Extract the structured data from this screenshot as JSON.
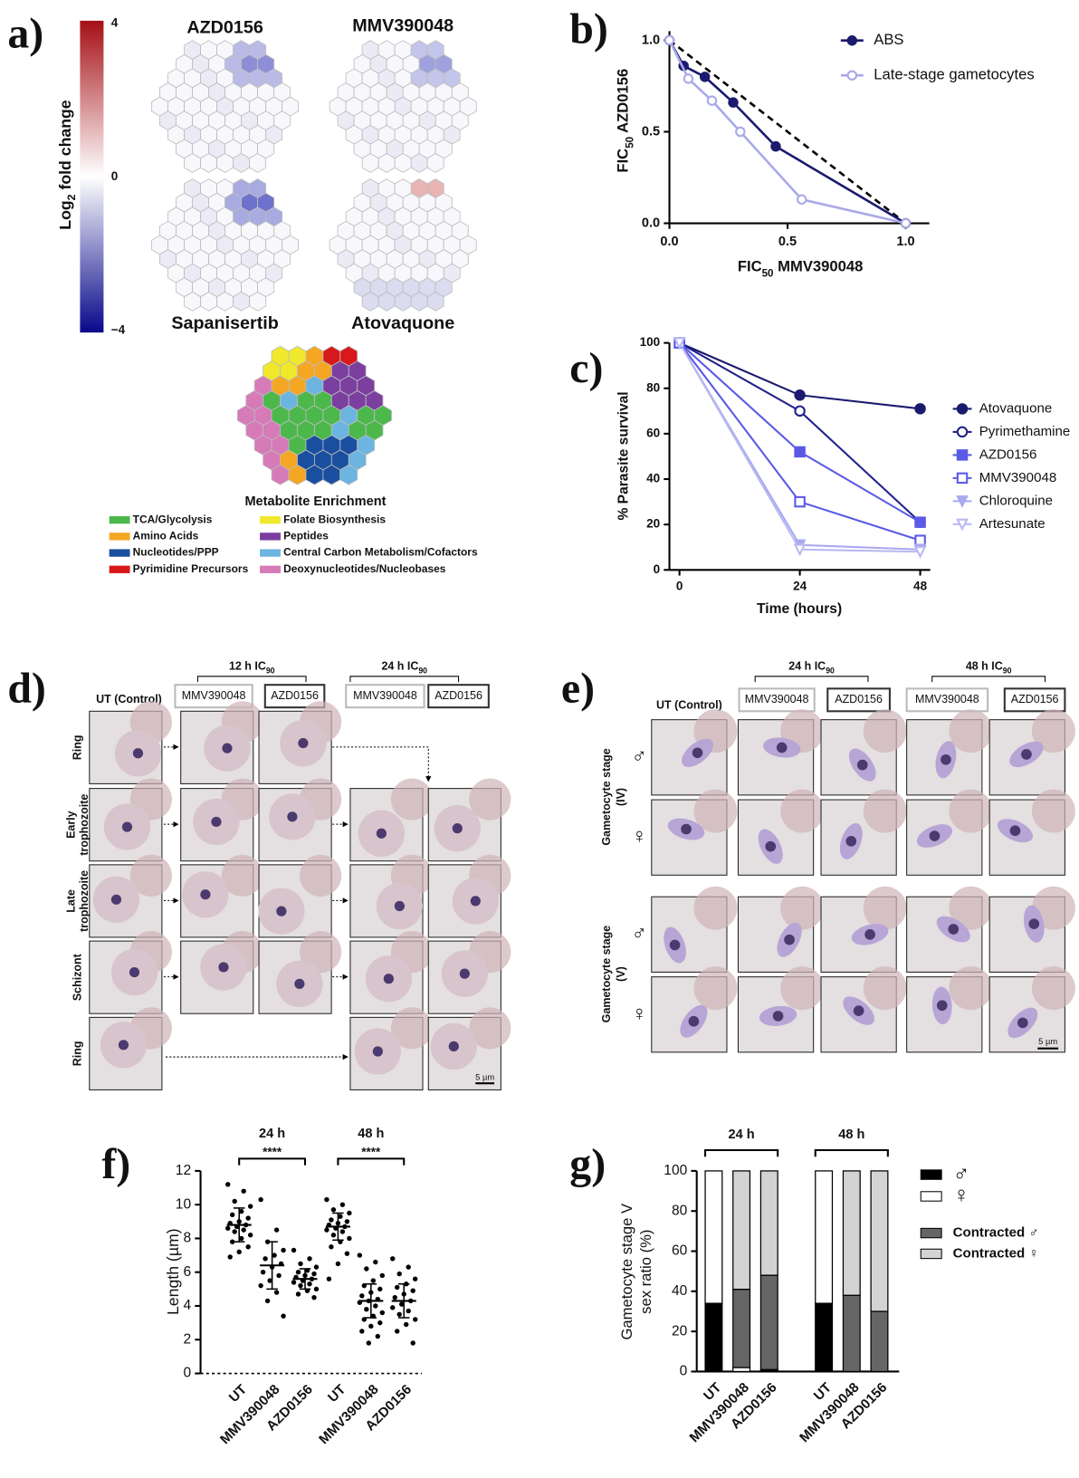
{
  "panel_labels": [
    "a)",
    "b)",
    "c)",
    "d)",
    "e)",
    "f)",
    "g)"
  ],
  "panel_a": {
    "colorbar_label": {
      "main": "Log",
      "sub": "2",
      "rest": " fold change"
    },
    "colorbar_ticks": [
      4,
      0,
      {
        "value": -4,
        "label": "−4"
      }
    ],
    "maps": [
      "AZD0156",
      "MMV390048",
      "Sapanisertib",
      "Atovaquone"
    ],
    "enrichment_title": "Metabolite Enrichment",
    "legend": [
      {
        "name": "TCA/Glycolysis",
        "color": "#4cb84c"
      },
      {
        "name": "Amino Acids",
        "color": "#f5a623"
      },
      {
        "name": "Nucleotides/PPP",
        "color": "#1a4fa0"
      },
      {
        "name": "Pyrimidine Precursors",
        "color": "#d7191c"
      },
      {
        "name": "Folate Biosynthesis",
        "color": "#f0e82a"
      },
      {
        "name": "Peptides",
        "color": "#7b3fa0"
      },
      {
        "name": "Central Carbon Metabolism/Cofactors",
        "color": "#6bb5e0"
      },
      {
        "name": "Deoxynucleotides/Nucleobases",
        "color": "#d67ab8"
      }
    ]
  },
  "panel_d": {
    "groups": [
      {
        "main": "12 h IC",
        "sub": "90"
      },
      {
        "main": "24 h IC",
        "sub": "90"
      }
    ],
    "columns": [
      "UT (Control)",
      "MMV390048",
      "AZD0156",
      "MMV390048",
      "AZD0156"
    ],
    "rows": [
      [
        "Ring"
      ],
      [
        "Early",
        "trophozoite"
      ],
      [
        "Late",
        "trophozoite"
      ],
      [
        "Schizont"
      ],
      [
        "Ring"
      ]
    ],
    "scale": "5 µm"
  },
  "panel_e": {
    "groups": [
      {
        "main": "24 h IC",
        "sub": "90"
      },
      {
        "main": "48 h IC",
        "sub": "90"
      }
    ],
    "columns": [
      "UT (Control)",
      "MMV390048",
      "AZD0156",
      "MMV390048",
      "AZD0156"
    ],
    "row_groups": [
      [
        "Gametocyte stage",
        "(IV)"
      ],
      [
        "Gametocyte stage",
        "(V)"
      ]
    ],
    "sexes": [
      "♂",
      "♀"
    ],
    "scale": "5 µm"
  },
  "chart_data": [
    {
      "type": "line",
      "x_label": {
        "main": "FIC",
        "sub": "50",
        "rest": " MMV390048"
      },
      "y_label": {
        "main": "FIC",
        "sub": "50",
        "rest": " AZD0156"
      },
      "xlim": [
        0,
        1.1
      ],
      "ylim": [
        0,
        1.05
      ],
      "xticks": [
        {
          "value": 0,
          "label": "0.0"
        },
        {
          "value": 0.5,
          "label": "0.5"
        },
        {
          "value": 1,
          "label": "1.0"
        }
      ],
      "yticks": [
        {
          "value": 0,
          "label": "0.0"
        },
        {
          "value": 0.5,
          "label": "0.5"
        },
        {
          "value": 1,
          "label": "1.0"
        }
      ],
      "series": [
        {
          "name": "ABS",
          "color": "#1a1a6e",
          "marker": "circle",
          "filled": true,
          "x": [
            0,
            0.06,
            0.15,
            0.27,
            0.45,
            1.0
          ],
          "values": [
            1.0,
            0.86,
            0.8,
            0.66,
            0.42,
            0.0
          ]
        },
        {
          "name": "Late-stage gametocytes",
          "color": "#a9a9e8",
          "marker": "circle",
          "filled": false,
          "x": [
            0,
            0.08,
            0.18,
            0.3,
            0.56,
            1.0
          ],
          "values": [
            1.0,
            0.79,
            0.67,
            0.5,
            0.13,
            0.0
          ]
        }
      ]
    },
    {
      "type": "line",
      "x_label": "Time (hours)",
      "y_label": "% Parasite survival",
      "x": [
        0,
        24,
        48
      ],
      "xlim": [
        -2,
        50
      ],
      "ylim": [
        0,
        100
      ],
      "xticks": [
        0,
        24,
        48
      ],
      "yticks": [
        0,
        20,
        40,
        60,
        80,
        100
      ],
      "series": [
        {
          "name": "Atovaquone",
          "color": "#1a1a6e",
          "marker": "circle",
          "filled": true,
          "values": [
            100,
            77,
            71
          ]
        },
        {
          "name": "Pyrimethamine",
          "color": "#22228c",
          "marker": "circle",
          "filled": false,
          "values": [
            100,
            70,
            21
          ]
        },
        {
          "name": "AZD0156",
          "color": "#5a5ae6",
          "marker": "square",
          "filled": true,
          "values": [
            100,
            52,
            21
          ]
        },
        {
          "name": "MMV390048",
          "color": "#5a5ae6",
          "marker": "square",
          "filled": false,
          "values": [
            100,
            30,
            13
          ]
        },
        {
          "name": "Chloroquine",
          "color": "#a9a9f0",
          "marker": "triangle",
          "filled": true,
          "values": [
            100,
            11,
            9
          ]
        },
        {
          "name": "Artesunate",
          "color": "#b9b9f0",
          "marker": "triangle",
          "filled": false,
          "values": [
            100,
            9,
            8
          ]
        }
      ]
    },
    {
      "type": "dot",
      "y_label": "Length (µm)",
      "ylim": [
        0,
        12
      ],
      "yticks": [
        0,
        2,
        4,
        6,
        8,
        10,
        12
      ],
      "categories": [
        "UT",
        "MMV390048",
        "AZD0156",
        "UT",
        "MMV390048",
        "AZD0156"
      ],
      "groups": [
        "24 h",
        "48 h"
      ],
      "annotations": [
        "****",
        "****"
      ],
      "means": [
        8.8,
        6.4,
        5.6,
        8.7,
        4.3,
        4.3
      ],
      "sd": [
        1.0,
        1.4,
        0.6,
        0.8,
        1.0,
        1.0
      ],
      "points": [
        [
          11.2,
          10.8,
          10.2,
          9.9,
          9.6,
          9.4,
          9.2,
          9.0,
          8.9,
          8.8,
          8.7,
          8.6,
          8.5,
          8.4,
          8.2,
          8.0,
          7.8,
          7.5,
          7.2,
          6.9
        ],
        [
          10.3,
          8.5,
          7.8,
          7.3,
          7.0,
          6.8,
          6.5,
          6.3,
          6.0,
          5.8,
          5.5,
          5.2,
          4.8,
          4.3,
          3.4
        ],
        [
          7.3,
          6.8,
          6.5,
          6.3,
          6.1,
          6.0,
          5.9,
          5.8,
          5.7,
          5.6,
          5.5,
          5.4,
          5.3,
          5.2,
          5.0,
          4.9,
          4.7,
          4.5
        ],
        [
          10.3,
          10.0,
          9.7,
          9.5,
          9.3,
          9.1,
          9.0,
          8.9,
          8.8,
          8.7,
          8.6,
          8.5,
          8.4,
          8.2,
          8.0,
          7.8,
          7.5,
          7.1,
          6.5,
          5.6
        ],
        [
          7.0,
          6.6,
          6.2,
          5.8,
          5.5,
          5.2,
          5.0,
          4.8,
          4.6,
          4.4,
          4.3,
          4.2,
          4.0,
          3.8,
          3.6,
          3.4,
          3.2,
          3.0,
          2.8,
          2.5,
          2.2,
          1.8
        ],
        [
          6.8,
          6.3,
          5.9,
          5.6,
          5.3,
          5.1,
          4.9,
          4.7,
          4.5,
          4.3,
          4.1,
          3.9,
          3.7,
          3.5,
          3.2,
          2.9,
          2.5,
          1.8
        ]
      ]
    },
    {
      "type": "stacked_bar",
      "y_label": [
        "Gametocyte stage V",
        "sex ratio (%)"
      ],
      "ylim": [
        0,
        100
      ],
      "yticks": [
        0,
        20,
        40,
        60,
        80,
        100
      ],
      "categories": [
        "UT",
        "MMV390048",
        "AZD0156",
        "UT",
        "MMV390048",
        "AZD0156"
      ],
      "groups": [
        "24 h",
        "48 h"
      ],
      "series": [
        {
          "name": "♂",
          "color": "#000000",
          "values": [
            34,
            0,
            1,
            34,
            0,
            0
          ]
        },
        {
          "name": "♀",
          "color": "#ffffff",
          "values": [
            66,
            2,
            0,
            66,
            0,
            0
          ]
        },
        {
          "name": "Contracted ♂",
          "color": "#666666",
          "values": [
            0,
            39,
            47,
            0,
            38,
            30
          ]
        },
        {
          "name": "Contracted ♀",
          "color": "#d3d3d3",
          "values": [
            0,
            59,
            52,
            0,
            62,
            70
          ]
        }
      ]
    }
  ]
}
